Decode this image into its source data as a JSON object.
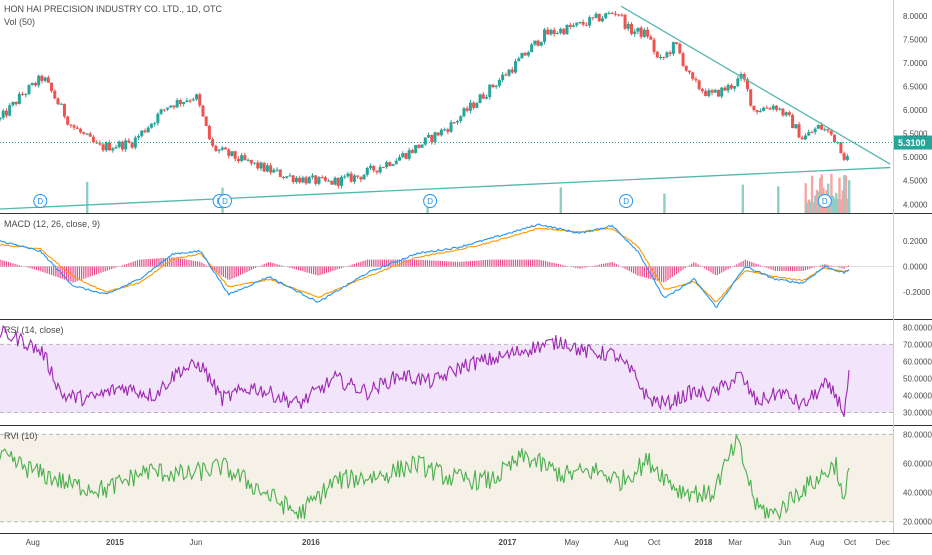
{
  "title": "HON HAI PRECISION INDUSTRY CO. LTD., 1D, OTC",
  "volume_label": "Vol (50)",
  "current_price_label": "5.3100",
  "dividend_marker": "D",
  "colors": {
    "up": "#26a69a",
    "down": "#ef5350",
    "volume_up": "#8ccfc6",
    "volume_down": "#f4a6a4",
    "trendline": "#53b8ad",
    "macd_line": "#2196f3",
    "signal_line": "#ff9800",
    "histogram": "#e94c8b",
    "rsi_line": "#9c27b0",
    "rsi_band": "#f2e4fb",
    "rvi_line": "#4caf50",
    "rvi_band": "#f5f1e6",
    "axis_text": "#4a4a4a",
    "panel_border": "#333333"
  },
  "chart_data": [
    {
      "type": "candlestick",
      "name": "price",
      "x_start": "2014-06-01",
      "x_end": "2018-12-20",
      "yaxis_ticks": [
        "8.0000",
        "7.5000",
        "7.0000",
        "6.5000",
        "6.0000",
        "5.5000",
        "5.0000",
        "4.5000",
        "4.0000"
      ],
      "ylim": [
        3.9,
        8.25
      ],
      "current_price": 5.31,
      "time_labels": [
        "Aug",
        "2015",
        "Jun",
        "2016",
        "2017",
        "May",
        "Aug",
        "Oct",
        "2018",
        "Mar",
        "Jun",
        "Aug",
        "Oct",
        "Dec"
      ],
      "anchors": [
        [
          "2014-06-01",
          5.8
        ],
        [
          "2014-07-10",
          6.3
        ],
        [
          "2014-08-20",
          6.7
        ],
        [
          "2014-10-10",
          5.7
        ],
        [
          "2014-12-01",
          5.2
        ],
        [
          "2015-02-01",
          5.3
        ],
        [
          "2015-04-10",
          6.1
        ],
        [
          "2015-06-01",
          6.3
        ],
        [
          "2015-07-01",
          5.2
        ],
        [
          "2015-09-01",
          4.9
        ],
        [
          "2015-11-15",
          4.6
        ],
        [
          "2016-02-01",
          4.45
        ],
        [
          "2016-04-01",
          4.6
        ],
        [
          "2016-07-01",
          5.1
        ],
        [
          "2016-09-20",
          5.7
        ],
        [
          "2016-11-15",
          6.3
        ],
        [
          "2017-01-10",
          6.9
        ],
        [
          "2017-03-10",
          7.6
        ],
        [
          "2017-05-15",
          7.8
        ],
        [
          "2017-07-25",
          8.1
        ],
        [
          "2017-08-15",
          7.7
        ],
        [
          "2017-09-20",
          7.6
        ],
        [
          "2017-10-10",
          7.0
        ],
        [
          "2017-11-10",
          7.4
        ],
        [
          "2017-12-10",
          6.6
        ],
        [
          "2018-01-15",
          6.3
        ],
        [
          "2018-02-20",
          6.5
        ],
        [
          "2018-03-15",
          6.7
        ],
        [
          "2018-04-05",
          6.0
        ],
        [
          "2018-05-15",
          6.1
        ],
        [
          "2018-06-10",
          5.8
        ],
        [
          "2018-07-05",
          5.4
        ],
        [
          "2018-08-05",
          5.65
        ],
        [
          "2018-08-25",
          5.5
        ],
        [
          "2018-09-10",
          5.3
        ],
        [
          "2018-09-25",
          4.9
        ],
        [
          "2018-10-01",
          5.31
        ]
      ],
      "dividends": [
        "2014-08-15",
        "2015-07-15",
        "2015-07-25",
        "2016-08-10",
        "2017-08-10",
        "2018-08-15"
      ],
      "trendlines": [
        {
          "from": [
            "2017-08-01",
            8.2
          ],
          "to": [
            "2018-12-15",
            4.85
          ]
        },
        {
          "from": [
            "2014-06-01",
            3.9
          ],
          "to": [
            "2018-12-15",
            4.78
          ]
        }
      ]
    },
    {
      "type": "line",
      "name": "MACD (12, 26, close, 9)",
      "yaxis_ticks": [
        "0.2000",
        "0.0000",
        "-0.2000"
      ],
      "ylim": [
        -0.38,
        0.38
      ],
      "series": [
        {
          "name": "MACD",
          "anchors": [
            [
              "2014-06-01",
              0.2
            ],
            [
              "2014-08-15",
              0.12
            ],
            [
              "2014-10-15",
              -0.15
            ],
            [
              "2014-12-15",
              -0.22
            ],
            [
              "2015-02-15",
              -0.1
            ],
            [
              "2015-04-20",
              0.1
            ],
            [
              "2015-06-10",
              0.12
            ],
            [
              "2015-08-01",
              -0.22
            ],
            [
              "2015-10-15",
              -0.08
            ],
            [
              "2016-01-15",
              -0.28
            ],
            [
              "2016-04-15",
              -0.05
            ],
            [
              "2016-07-15",
              0.1
            ],
            [
              "2016-10-01",
              0.15
            ],
            [
              "2016-12-01",
              0.22
            ],
            [
              "2017-03-01",
              0.33
            ],
            [
              "2017-05-15",
              0.26
            ],
            [
              "2017-07-15",
              0.32
            ],
            [
              "2017-09-01",
              0.12
            ],
            [
              "2017-10-20",
              -0.25
            ],
            [
              "2017-12-15",
              -0.1
            ],
            [
              "2018-01-25",
              -0.32
            ],
            [
              "2018-03-20",
              0.0
            ],
            [
              "2018-05-15",
              -0.1
            ],
            [
              "2018-07-05",
              -0.13
            ],
            [
              "2018-08-15",
              0.0
            ],
            [
              "2018-09-20",
              -0.05
            ],
            [
              "2018-10-01",
              -0.02
            ]
          ]
        },
        {
          "name": "Signal",
          "anchors": [
            [
              "2014-06-01",
              0.17
            ],
            [
              "2014-08-15",
              0.14
            ],
            [
              "2014-10-15",
              -0.08
            ],
            [
              "2014-12-15",
              -0.2
            ],
            [
              "2015-02-15",
              -0.13
            ],
            [
              "2015-04-20",
              0.06
            ],
            [
              "2015-06-10",
              0.1
            ],
            [
              "2015-08-01",
              -0.16
            ],
            [
              "2015-10-15",
              -0.1
            ],
            [
              "2016-01-15",
              -0.24
            ],
            [
              "2016-04-15",
              -0.08
            ],
            [
              "2016-07-15",
              0.07
            ],
            [
              "2016-10-01",
              0.13
            ],
            [
              "2016-12-01",
              0.19
            ],
            [
              "2017-03-01",
              0.3
            ],
            [
              "2017-05-15",
              0.27
            ],
            [
              "2017-07-15",
              0.3
            ],
            [
              "2017-09-01",
              0.16
            ],
            [
              "2017-10-20",
              -0.18
            ],
            [
              "2017-12-15",
              -0.12
            ],
            [
              "2018-01-25",
              -0.28
            ],
            [
              "2018-03-20",
              -0.03
            ],
            [
              "2018-05-15",
              -0.08
            ],
            [
              "2018-07-05",
              -0.11
            ],
            [
              "2018-08-15",
              -0.01
            ],
            [
              "2018-09-20",
              -0.04
            ],
            [
              "2018-10-01",
              -0.03
            ]
          ]
        }
      ]
    },
    {
      "type": "line",
      "name": "RSI (14, close)",
      "yaxis_ticks": [
        "80.0000",
        "70.0000",
        "60.0000",
        "50.0000",
        "40.0000",
        "30.0000"
      ],
      "ylim": [
        25,
        82
      ],
      "band": [
        30,
        70
      ],
      "anchors": [
        [
          "2014-06-01",
          77
        ],
        [
          "2014-07-15",
          72
        ],
        [
          "2014-08-20",
          65
        ],
        [
          "2014-09-25",
          40
        ],
        [
          "2014-11-15",
          38
        ],
        [
          "2015-01-15",
          45
        ],
        [
          "2015-03-15",
          40
        ],
        [
          "2015-05-01",
          55
        ],
        [
          "2015-06-10",
          58
        ],
        [
          "2015-07-20",
          38
        ],
        [
          "2015-09-15",
          45
        ],
        [
          "2015-12-10",
          35
        ],
        [
          "2016-02-15",
          50
        ],
        [
          "2016-04-15",
          42
        ],
        [
          "2016-06-15",
          52
        ],
        [
          "2016-08-15",
          48
        ],
        [
          "2016-10-15",
          58
        ],
        [
          "2016-12-15",
          62
        ],
        [
          "2017-02-15",
          68
        ],
        [
          "2017-04-15",
          72
        ],
        [
          "2017-05-20",
          66
        ],
        [
          "2017-07-20",
          64
        ],
        [
          "2017-08-25",
          52
        ],
        [
          "2017-09-20",
          38
        ],
        [
          "2017-10-25",
          35
        ],
        [
          "2017-12-10",
          42
        ],
        [
          "2018-01-15",
          40
        ],
        [
          "2018-02-20",
          48
        ],
        [
          "2018-03-10",
          52
        ],
        [
          "2018-04-10",
          36
        ],
        [
          "2018-05-25",
          42
        ],
        [
          "2018-07-05",
          34
        ],
        [
          "2018-08-15",
          46
        ],
        [
          "2018-09-05",
          40
        ],
        [
          "2018-09-20",
          30
        ],
        [
          "2018-10-01",
          55
        ]
      ]
    },
    {
      "type": "line",
      "name": "RVI (10)",
      "yaxis_ticks": [
        "80.0000",
        "60.0000",
        "40.0000",
        "20.0000"
      ],
      "ylim": [
        15,
        83
      ],
      "band": [
        20,
        80
      ],
      "anchors": [
        [
          "2014-06-01",
          65
        ],
        [
          "2014-08-01",
          55
        ],
        [
          "2014-10-15",
          45
        ],
        [
          "2014-12-15",
          42
        ],
        [
          "2015-03-01",
          55
        ],
        [
          "2015-05-15",
          52
        ],
        [
          "2015-07-20",
          58
        ],
        [
          "2015-09-15",
          45
        ],
        [
          "2015-12-10",
          25
        ],
        [
          "2016-02-15",
          48
        ],
        [
          "2016-05-15",
          52
        ],
        [
          "2016-07-15",
          60
        ],
        [
          "2016-09-15",
          50
        ],
        [
          "2016-12-01",
          48
        ],
        [
          "2017-02-01",
          65
        ],
        [
          "2017-04-15",
          52
        ],
        [
          "2017-06-15",
          55
        ],
        [
          "2017-08-01",
          48
        ],
        [
          "2017-09-20",
          62
        ],
        [
          "2017-11-15",
          42
        ],
        [
          "2018-01-15",
          38
        ],
        [
          "2018-03-05",
          75
        ],
        [
          "2018-04-10",
          30
        ],
        [
          "2018-05-15",
          25
        ],
        [
          "2018-06-25",
          40
        ],
        [
          "2018-08-05",
          50
        ],
        [
          "2018-09-05",
          60
        ],
        [
          "2018-09-20",
          30
        ],
        [
          "2018-10-01",
          62
        ]
      ]
    }
  ]
}
